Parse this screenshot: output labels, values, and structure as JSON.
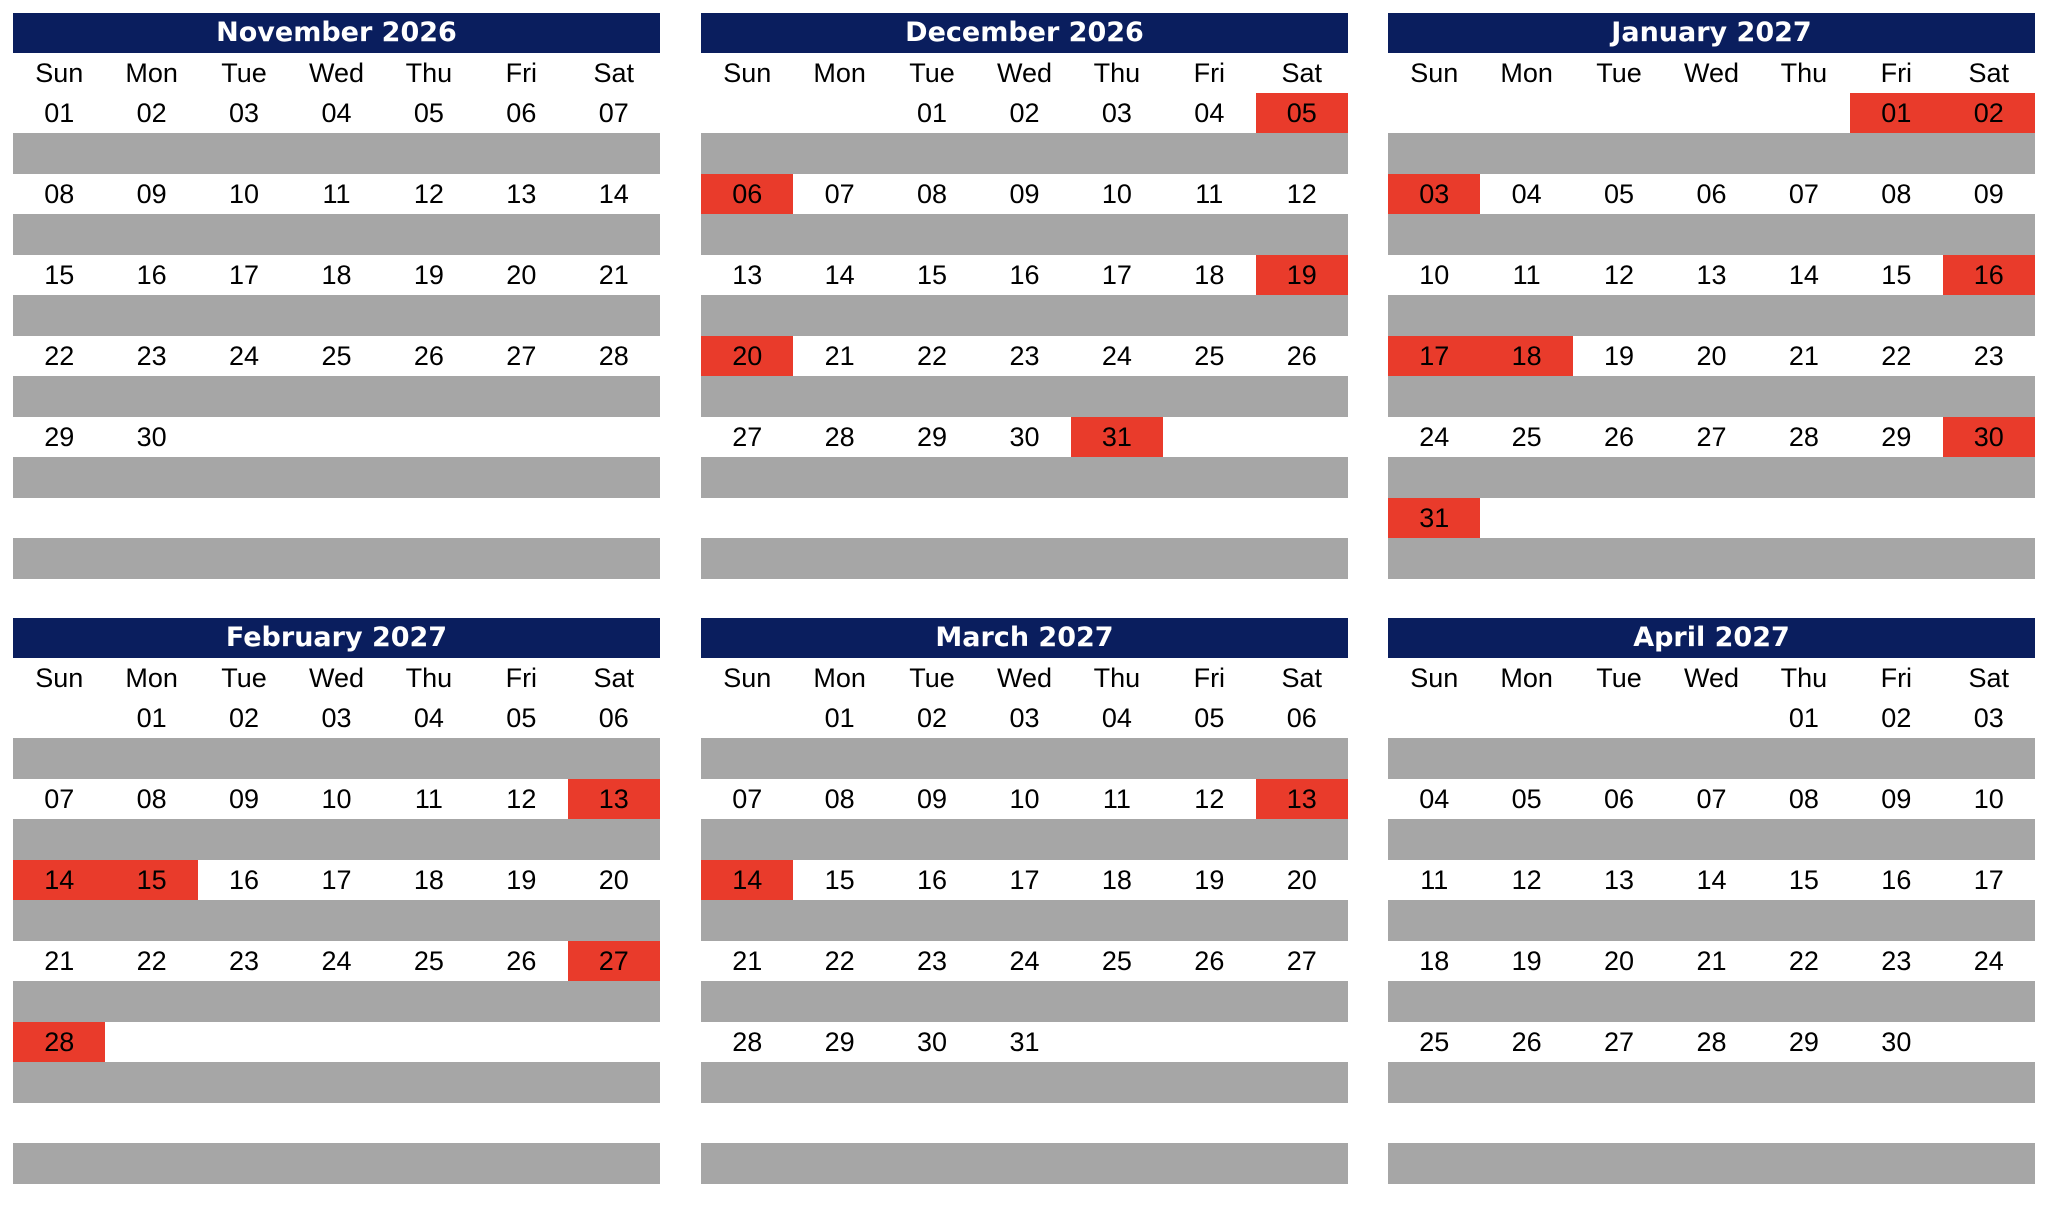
{
  "colors": {
    "header_bg": "#0a1e5e",
    "stripe": "#a6a6a6",
    "holiday": "#e93b2b"
  },
  "weekday_labels": [
    "Sun",
    "Mon",
    "Tue",
    "Wed",
    "Thu",
    "Fri",
    "Sat"
  ],
  "months": [
    {
      "title": "November 2026",
      "weeks": [
        [
          {
            "d": "01",
            "h": false
          },
          {
            "d": "02",
            "h": false
          },
          {
            "d": "03",
            "h": false
          },
          {
            "d": "04",
            "h": false
          },
          {
            "d": "05",
            "h": false
          },
          {
            "d": "06",
            "h": false
          },
          {
            "d": "07",
            "h": false
          }
        ],
        [
          {
            "d": "08",
            "h": false
          },
          {
            "d": "09",
            "h": false
          },
          {
            "d": "10",
            "h": false
          },
          {
            "d": "11",
            "h": false
          },
          {
            "d": "12",
            "h": false
          },
          {
            "d": "13",
            "h": false
          },
          {
            "d": "14",
            "h": false
          }
        ],
        [
          {
            "d": "15",
            "h": false
          },
          {
            "d": "16",
            "h": false
          },
          {
            "d": "17",
            "h": false
          },
          {
            "d": "18",
            "h": false
          },
          {
            "d": "19",
            "h": false
          },
          {
            "d": "20",
            "h": false
          },
          {
            "d": "21",
            "h": false
          }
        ],
        [
          {
            "d": "22",
            "h": false
          },
          {
            "d": "23",
            "h": false
          },
          {
            "d": "24",
            "h": false
          },
          {
            "d": "25",
            "h": false
          },
          {
            "d": "26",
            "h": false
          },
          {
            "d": "27",
            "h": false
          },
          {
            "d": "28",
            "h": false
          }
        ],
        [
          {
            "d": "29",
            "h": false
          },
          {
            "d": "30",
            "h": false
          },
          {
            "d": "",
            "h": false
          },
          {
            "d": "",
            "h": false
          },
          {
            "d": "",
            "h": false
          },
          {
            "d": "",
            "h": false
          },
          {
            "d": "",
            "h": false
          }
        ],
        [
          {
            "d": "",
            "h": false
          },
          {
            "d": "",
            "h": false
          },
          {
            "d": "",
            "h": false
          },
          {
            "d": "",
            "h": false
          },
          {
            "d": "",
            "h": false
          },
          {
            "d": "",
            "h": false
          },
          {
            "d": "",
            "h": false
          }
        ]
      ]
    },
    {
      "title": "December 2026",
      "weeks": [
        [
          {
            "d": "",
            "h": false
          },
          {
            "d": "",
            "h": false
          },
          {
            "d": "01",
            "h": false
          },
          {
            "d": "02",
            "h": false
          },
          {
            "d": "03",
            "h": false
          },
          {
            "d": "04",
            "h": false
          },
          {
            "d": "05",
            "h": true
          }
        ],
        [
          {
            "d": "06",
            "h": true
          },
          {
            "d": "07",
            "h": false
          },
          {
            "d": "08",
            "h": false
          },
          {
            "d": "09",
            "h": false
          },
          {
            "d": "10",
            "h": false
          },
          {
            "d": "11",
            "h": false
          },
          {
            "d": "12",
            "h": false
          }
        ],
        [
          {
            "d": "13",
            "h": false
          },
          {
            "d": "14",
            "h": false
          },
          {
            "d": "15",
            "h": false
          },
          {
            "d": "16",
            "h": false
          },
          {
            "d": "17",
            "h": false
          },
          {
            "d": "18",
            "h": false
          },
          {
            "d": "19",
            "h": true
          }
        ],
        [
          {
            "d": "20",
            "h": true
          },
          {
            "d": "21",
            "h": false
          },
          {
            "d": "22",
            "h": false
          },
          {
            "d": "23",
            "h": false
          },
          {
            "d": "24",
            "h": false
          },
          {
            "d": "25",
            "h": false
          },
          {
            "d": "26",
            "h": false
          }
        ],
        [
          {
            "d": "27",
            "h": false
          },
          {
            "d": "28",
            "h": false
          },
          {
            "d": "29",
            "h": false
          },
          {
            "d": "30",
            "h": false
          },
          {
            "d": "31",
            "h": true
          },
          {
            "d": "",
            "h": false
          },
          {
            "d": "",
            "h": false
          }
        ],
        [
          {
            "d": "",
            "h": false
          },
          {
            "d": "",
            "h": false
          },
          {
            "d": "",
            "h": false
          },
          {
            "d": "",
            "h": false
          },
          {
            "d": "",
            "h": false
          },
          {
            "d": "",
            "h": false
          },
          {
            "d": "",
            "h": false
          }
        ]
      ]
    },
    {
      "title": "January 2027",
      "weeks": [
        [
          {
            "d": "",
            "h": false
          },
          {
            "d": "",
            "h": false
          },
          {
            "d": "",
            "h": false
          },
          {
            "d": "",
            "h": false
          },
          {
            "d": "",
            "h": false
          },
          {
            "d": "01",
            "h": true
          },
          {
            "d": "02",
            "h": true
          }
        ],
        [
          {
            "d": "03",
            "h": true
          },
          {
            "d": "04",
            "h": false
          },
          {
            "d": "05",
            "h": false
          },
          {
            "d": "06",
            "h": false
          },
          {
            "d": "07",
            "h": false
          },
          {
            "d": "08",
            "h": false
          },
          {
            "d": "09",
            "h": false
          }
        ],
        [
          {
            "d": "10",
            "h": false
          },
          {
            "d": "11",
            "h": false
          },
          {
            "d": "12",
            "h": false
          },
          {
            "d": "13",
            "h": false
          },
          {
            "d": "14",
            "h": false
          },
          {
            "d": "15",
            "h": false
          },
          {
            "d": "16",
            "h": true
          }
        ],
        [
          {
            "d": "17",
            "h": true
          },
          {
            "d": "18",
            "h": true
          },
          {
            "d": "19",
            "h": false
          },
          {
            "d": "20",
            "h": false
          },
          {
            "d": "21",
            "h": false
          },
          {
            "d": "22",
            "h": false
          },
          {
            "d": "23",
            "h": false
          }
        ],
        [
          {
            "d": "24",
            "h": false
          },
          {
            "d": "25",
            "h": false
          },
          {
            "d": "26",
            "h": false
          },
          {
            "d": "27",
            "h": false
          },
          {
            "d": "28",
            "h": false
          },
          {
            "d": "29",
            "h": false
          },
          {
            "d": "30",
            "h": true
          }
        ],
        [
          {
            "d": "31",
            "h": true
          },
          {
            "d": "",
            "h": false
          },
          {
            "d": "",
            "h": false
          },
          {
            "d": "",
            "h": false
          },
          {
            "d": "",
            "h": false
          },
          {
            "d": "",
            "h": false
          },
          {
            "d": "",
            "h": false
          }
        ]
      ]
    },
    {
      "title": "February 2027",
      "weeks": [
        [
          {
            "d": "",
            "h": false
          },
          {
            "d": "01",
            "h": false
          },
          {
            "d": "02",
            "h": false
          },
          {
            "d": "03",
            "h": false
          },
          {
            "d": "04",
            "h": false
          },
          {
            "d": "05",
            "h": false
          },
          {
            "d": "06",
            "h": false
          }
        ],
        [
          {
            "d": "07",
            "h": false
          },
          {
            "d": "08",
            "h": false
          },
          {
            "d": "09",
            "h": false
          },
          {
            "d": "10",
            "h": false
          },
          {
            "d": "11",
            "h": false
          },
          {
            "d": "12",
            "h": false
          },
          {
            "d": "13",
            "h": true
          }
        ],
        [
          {
            "d": "14",
            "h": true
          },
          {
            "d": "15",
            "h": true
          },
          {
            "d": "16",
            "h": false
          },
          {
            "d": "17",
            "h": false
          },
          {
            "d": "18",
            "h": false
          },
          {
            "d": "19",
            "h": false
          },
          {
            "d": "20",
            "h": false
          }
        ],
        [
          {
            "d": "21",
            "h": false
          },
          {
            "d": "22",
            "h": false
          },
          {
            "d": "23",
            "h": false
          },
          {
            "d": "24",
            "h": false
          },
          {
            "d": "25",
            "h": false
          },
          {
            "d": "26",
            "h": false
          },
          {
            "d": "27",
            "h": true
          }
        ],
        [
          {
            "d": "28",
            "h": true
          },
          {
            "d": "",
            "h": false
          },
          {
            "d": "",
            "h": false
          },
          {
            "d": "",
            "h": false
          },
          {
            "d": "",
            "h": false
          },
          {
            "d": "",
            "h": false
          },
          {
            "d": "",
            "h": false
          }
        ],
        [
          {
            "d": "",
            "h": false
          },
          {
            "d": "",
            "h": false
          },
          {
            "d": "",
            "h": false
          },
          {
            "d": "",
            "h": false
          },
          {
            "d": "",
            "h": false
          },
          {
            "d": "",
            "h": false
          },
          {
            "d": "",
            "h": false
          }
        ]
      ]
    },
    {
      "title": "March 2027",
      "weeks": [
        [
          {
            "d": "",
            "h": false
          },
          {
            "d": "01",
            "h": false
          },
          {
            "d": "02",
            "h": false
          },
          {
            "d": "03",
            "h": false
          },
          {
            "d": "04",
            "h": false
          },
          {
            "d": "05",
            "h": false
          },
          {
            "d": "06",
            "h": false
          }
        ],
        [
          {
            "d": "07",
            "h": false
          },
          {
            "d": "08",
            "h": false
          },
          {
            "d": "09",
            "h": false
          },
          {
            "d": "10",
            "h": false
          },
          {
            "d": "11",
            "h": false
          },
          {
            "d": "12",
            "h": false
          },
          {
            "d": "13",
            "h": true
          }
        ],
        [
          {
            "d": "14",
            "h": true
          },
          {
            "d": "15",
            "h": false
          },
          {
            "d": "16",
            "h": false
          },
          {
            "d": "17",
            "h": false
          },
          {
            "d": "18",
            "h": false
          },
          {
            "d": "19",
            "h": false
          },
          {
            "d": "20",
            "h": false
          }
        ],
        [
          {
            "d": "21",
            "h": false
          },
          {
            "d": "22",
            "h": false
          },
          {
            "d": "23",
            "h": false
          },
          {
            "d": "24",
            "h": false
          },
          {
            "d": "25",
            "h": false
          },
          {
            "d": "26",
            "h": false
          },
          {
            "d": "27",
            "h": false
          }
        ],
        [
          {
            "d": "28",
            "h": false
          },
          {
            "d": "29",
            "h": false
          },
          {
            "d": "30",
            "h": false
          },
          {
            "d": "31",
            "h": false
          },
          {
            "d": "",
            "h": false
          },
          {
            "d": "",
            "h": false
          },
          {
            "d": "",
            "h": false
          }
        ],
        [
          {
            "d": "",
            "h": false
          },
          {
            "d": "",
            "h": false
          },
          {
            "d": "",
            "h": false
          },
          {
            "d": "",
            "h": false
          },
          {
            "d": "",
            "h": false
          },
          {
            "d": "",
            "h": false
          },
          {
            "d": "",
            "h": false
          }
        ]
      ]
    },
    {
      "title": "April 2027",
      "weeks": [
        [
          {
            "d": "",
            "h": false
          },
          {
            "d": "",
            "h": false
          },
          {
            "d": "",
            "h": false
          },
          {
            "d": "",
            "h": false
          },
          {
            "d": "01",
            "h": false
          },
          {
            "d": "02",
            "h": false
          },
          {
            "d": "03",
            "h": false
          }
        ],
        [
          {
            "d": "04",
            "h": false
          },
          {
            "d": "05",
            "h": false
          },
          {
            "d": "06",
            "h": false
          },
          {
            "d": "07",
            "h": false
          },
          {
            "d": "08",
            "h": false
          },
          {
            "d": "09",
            "h": false
          },
          {
            "d": "10",
            "h": false
          }
        ],
        [
          {
            "d": "11",
            "h": false
          },
          {
            "d": "12",
            "h": false
          },
          {
            "d": "13",
            "h": false
          },
          {
            "d": "14",
            "h": false
          },
          {
            "d": "15",
            "h": false
          },
          {
            "d": "16",
            "h": false
          },
          {
            "d": "17",
            "h": false
          }
        ],
        [
          {
            "d": "18",
            "h": false
          },
          {
            "d": "19",
            "h": false
          },
          {
            "d": "20",
            "h": false
          },
          {
            "d": "21",
            "h": false
          },
          {
            "d": "22",
            "h": false
          },
          {
            "d": "23",
            "h": false
          },
          {
            "d": "24",
            "h": false
          }
        ],
        [
          {
            "d": "25",
            "h": false
          },
          {
            "d": "26",
            "h": false
          },
          {
            "d": "27",
            "h": false
          },
          {
            "d": "28",
            "h": false
          },
          {
            "d": "29",
            "h": false
          },
          {
            "d": "30",
            "h": false
          },
          {
            "d": "",
            "h": false
          }
        ],
        [
          {
            "d": "",
            "h": false
          },
          {
            "d": "",
            "h": false
          },
          {
            "d": "",
            "h": false
          },
          {
            "d": "",
            "h": false
          },
          {
            "d": "",
            "h": false
          },
          {
            "d": "",
            "h": false
          },
          {
            "d": "",
            "h": false
          }
        ]
      ]
    }
  ]
}
